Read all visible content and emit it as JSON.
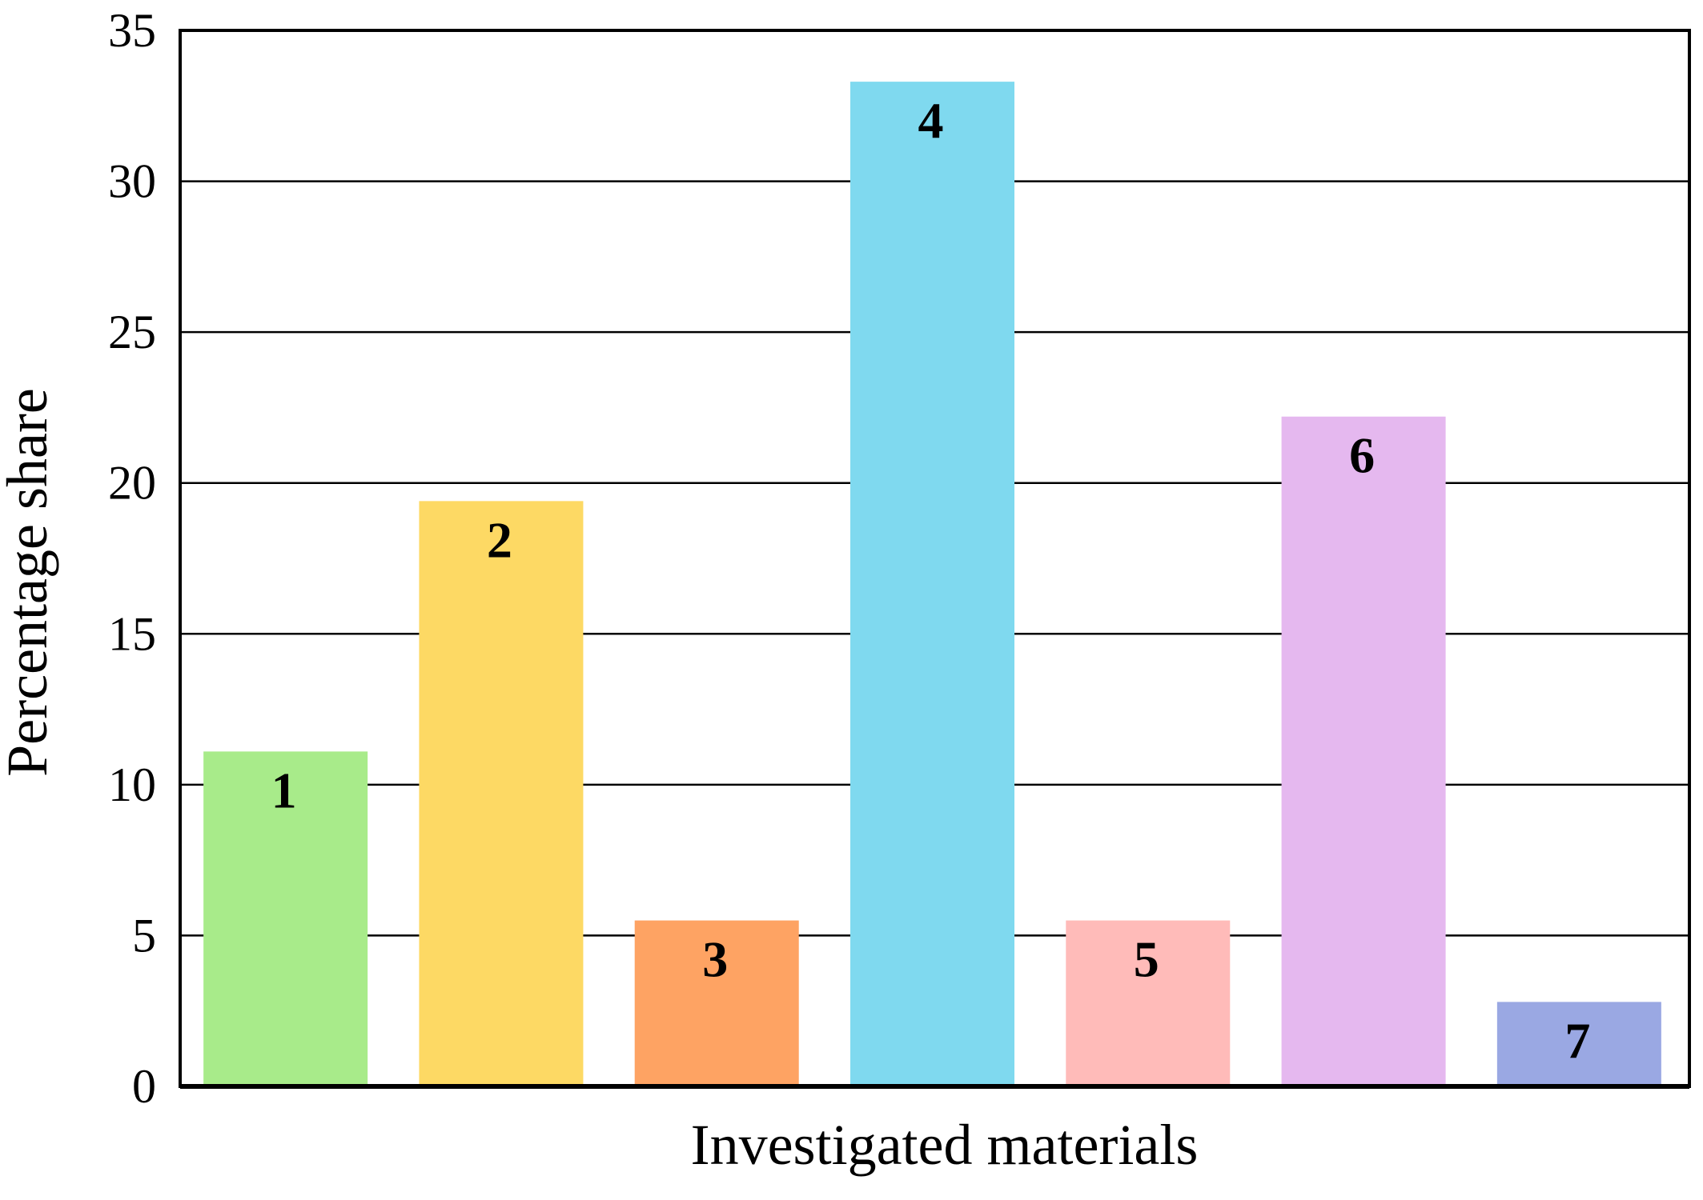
{
  "chart_data": {
    "type": "bar",
    "categories": [
      "1",
      "2",
      "3",
      "4",
      "5",
      "6",
      "7"
    ],
    "values": [
      11.1,
      19.4,
      5.5,
      33.3,
      5.5,
      22.2,
      2.8
    ],
    "bar_labels": [
      "1",
      "2",
      "3",
      "4",
      "5",
      "6",
      "7"
    ],
    "colors": [
      "#a8eb8a",
      "#fdd964",
      "#fea363",
      "#7fd9ef",
      "#ffbbb9",
      "#e5b8ef",
      "#9aa8e3"
    ],
    "xlabel": "Investigated materials",
    "ylabel": "Percentage share",
    "ylim": [
      0,
      35
    ],
    "yticks": [
      0,
      5,
      10,
      15,
      20,
      25,
      30,
      35
    ],
    "grid": true,
    "legend": false
  }
}
